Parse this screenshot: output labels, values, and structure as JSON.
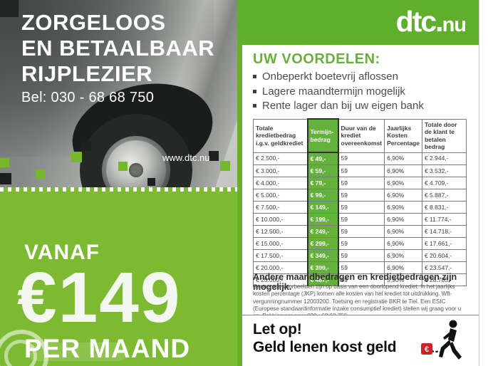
{
  "brand": {
    "logo_main": "dtc.",
    "logo_tld": "nu",
    "website": "www.dtc.nu"
  },
  "hero": {
    "line1": "ZORGELOOS",
    "line2": "EN BETAALBAAR",
    "line3": "RIJPLEZIER",
    "phone": "Bel: 030 - 68 68 750"
  },
  "offer": {
    "vanaf": "VANAF",
    "amount": "€149",
    "per": "PER MAAND"
  },
  "benefits": {
    "title": "UW VOORDELEN:",
    "items": [
      "Onbeperkt boetevrij aflossen",
      "Lagere maandtermijn mogelijk",
      "Rente lager dan bij uw eigen bank"
    ]
  },
  "loan_table": {
    "headers": [
      "Totale kredietbedrag i.g.v. geldkrediet",
      "Termijn-bedrag",
      "Duur van de krediet overeenkomst",
      "Jaarlijks Kosten Percentage",
      "Totale door de klant te betalen bedrag"
    ],
    "rows": [
      [
        "€ 2.500,-",
        "€ 49,-",
        "59",
        "6,90%",
        "€ 2.944,-"
      ],
      [
        "€ 3.000,-",
        "€ 59,-",
        "59",
        "6,90%",
        "€ 3.532,-"
      ],
      [
        "€ 4.000,-",
        "€ 79,-",
        "59",
        "6,90%",
        "€ 4.709,-"
      ],
      [
        "€ 5.000,-",
        "€ 99,-",
        "59",
        "6,90%",
        "€ 5.887,-"
      ],
      [
        "€ 7.500,-",
        "€ 149,-",
        "59",
        "6,90%",
        "€ 8.831,-"
      ],
      [
        "€ 10.000,-",
        "€ 199,-",
        "59",
        "6,90%",
        "€ 11.774,-"
      ],
      [
        "€ 12.500,-",
        "€ 249,-",
        "59",
        "6,90%",
        "€ 14.718,-"
      ],
      [
        "€ 15.000,-",
        "€ 299,-",
        "59",
        "6,90%",
        "€ 17.661,-"
      ],
      [
        "€ 17.500,-",
        "€ 349,-",
        "59",
        "6,90%",
        "€ 20.604,-"
      ],
      [
        "€ 20.000,-",
        "€ 399,-",
        "59",
        "6,90%",
        "€ 23.547,-"
      ],
      [
        "€ 25.000,-",
        "€ 487,-",
        "59",
        "5,90%",
        "€ 28.783,-"
      ]
    ]
  },
  "disclaimer": {
    "title": "Andere maandbedragen en kredietbedragen zijn mogelijk.",
    "body": "Genoemde voorbeelden zijn op basis van een doorlopend krediet. In het jaarlijks kosten percentage (JKP) komen alle kosten van het krediet tot uitdrukking. Wft-vergunningnummer 12003200. Toetsing en registratie BKR te Tiel. Een ESIC (Europese standaardinformatie inzake consumptief krediet) stellen wij graag voor u op. Bel hiervoor naar 030 - 68 68 750."
  },
  "warning": {
    "line1": "Let op!",
    "line2": "Geld lenen kost geld",
    "euro": "€"
  },
  "colors": {
    "header_green": "#5fae2c",
    "panel_green": "#7cba31",
    "cell_green": "#64b23c",
    "accent_green": "#6aaf3d",
    "square_green": "#76b82a",
    "warning_red": "#cc2229"
  }
}
